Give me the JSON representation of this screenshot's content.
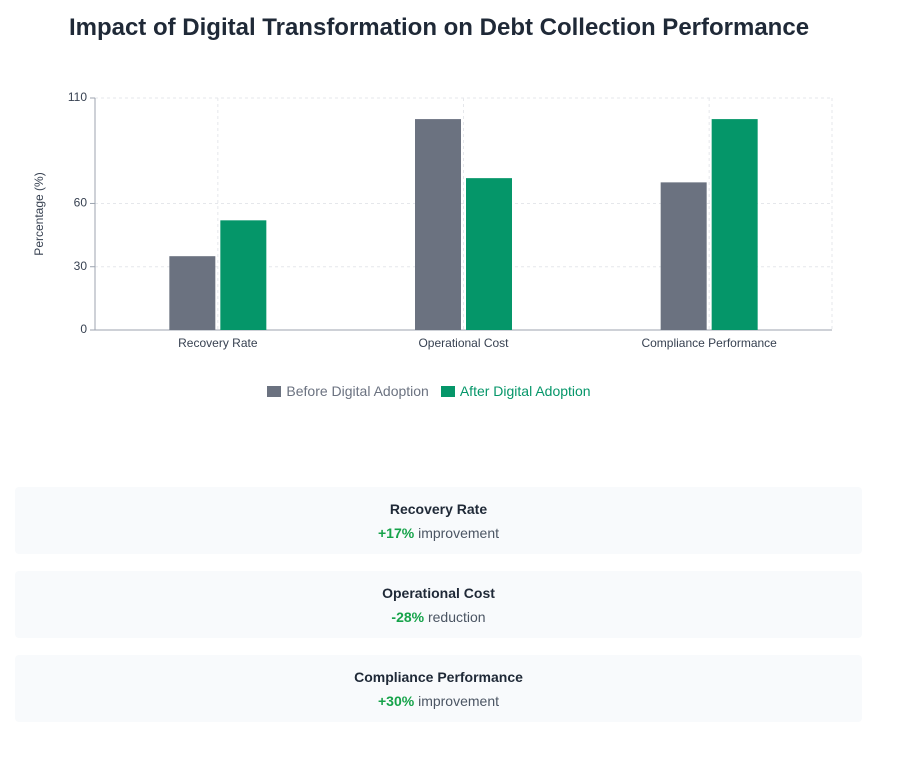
{
  "chart_data": {
    "type": "bar",
    "title": "Impact of Digital Transformation on Debt Collection Performance",
    "y_label": "Percentage (%)",
    "categories": [
      "Recovery Rate",
      "Operational Cost",
      "Compliance Performance"
    ],
    "series": [
      {
        "name": "Before Digital Adoption",
        "color": "#6b7280",
        "values": [
          35,
          100,
          70
        ]
      },
      {
        "name": "After Digital Adoption",
        "color": "#059669",
        "values": [
          52,
          72,
          100
        ]
      }
    ],
    "ylim": [
      0,
      110
    ],
    "yticks": [
      0,
      30,
      60,
      110
    ],
    "grid": true
  },
  "cards": [
    {
      "title": "Recovery Rate",
      "change": "+17%",
      "note": "improvement"
    },
    {
      "title": "Operational Cost",
      "change": "-28%",
      "note": "reduction"
    },
    {
      "title": "Compliance Performance",
      "change": "+30%",
      "note": "improvement"
    }
  ]
}
